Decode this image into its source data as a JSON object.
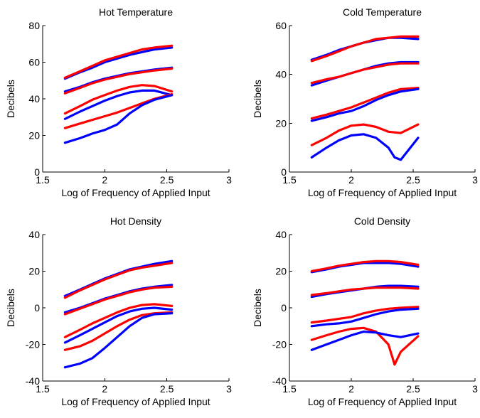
{
  "chart_data": [
    {
      "type": "line",
      "title": "Hot Temperature",
      "xlabel": "Log of Frequency of Applied Input",
      "ylabel": "Decibels",
      "xlim": [
        1.5,
        3
      ],
      "ylim": [
        0,
        80
      ],
      "xticks": [
        "1.5",
        "2",
        "2.5",
        "3"
      ],
      "yticks": [
        "0",
        "20",
        "40",
        "60",
        "80"
      ],
      "colors": {
        "blue": "#0000ff",
        "red": "#ff0000"
      },
      "series": [
        {
          "color": "blue",
          "x": [
            1.68,
            1.8,
            1.9,
            2.0,
            2.1,
            2.2,
            2.3,
            2.4,
            2.54
          ],
          "y": [
            51,
            54.5,
            57,
            60,
            62,
            64,
            65.5,
            67,
            68
          ]
        },
        {
          "color": "red",
          "x": [
            1.68,
            1.8,
            1.9,
            2.0,
            2.1,
            2.2,
            2.3,
            2.4,
            2.54
          ],
          "y": [
            51.5,
            55,
            58,
            61,
            63,
            65,
            67,
            68,
            69
          ]
        },
        {
          "color": "blue",
          "x": [
            1.68,
            1.8,
            1.9,
            2.0,
            2.1,
            2.2,
            2.3,
            2.4,
            2.54
          ],
          "y": [
            44,
            46.5,
            49,
            51,
            52.5,
            54,
            55,
            56,
            57
          ]
        },
        {
          "color": "red",
          "x": [
            1.68,
            1.8,
            1.9,
            2.0,
            2.1,
            2.2,
            2.3,
            2.4,
            2.54
          ],
          "y": [
            43,
            46,
            48.5,
            50.5,
            52,
            53.5,
            54.5,
            55.5,
            56.5
          ]
        },
        {
          "color": "blue",
          "x": [
            1.68,
            1.8,
            1.9,
            2.0,
            2.1,
            2.2,
            2.3,
            2.4,
            2.54
          ],
          "y": [
            29,
            33,
            36,
            39,
            41.5,
            43.5,
            44.5,
            44.5,
            42
          ]
        },
        {
          "color": "red",
          "x": [
            1.68,
            1.8,
            1.9,
            2.0,
            2.1,
            2.2,
            2.3,
            2.4,
            2.54
          ],
          "y": [
            32,
            36,
            39.5,
            42,
            44.5,
            46.5,
            47.5,
            47,
            44
          ]
        },
        {
          "color": "red",
          "x": [
            1.68,
            1.8,
            1.9,
            2.0,
            2.1,
            2.2,
            2.3,
            2.4,
            2.54
          ],
          "y": [
            24,
            26.5,
            28.5,
            30.5,
            32.5,
            35,
            37.5,
            40,
            42.5
          ]
        },
        {
          "color": "blue",
          "x": [
            1.68,
            1.8,
            1.9,
            2.0,
            2.1,
            2.2,
            2.3,
            2.4,
            2.54
          ],
          "y": [
            16,
            18.5,
            21,
            23,
            26,
            32,
            36.5,
            39.5,
            42
          ]
        }
      ]
    },
    {
      "type": "line",
      "title": "Cold Temperature",
      "xlabel": "Log of Frequency of Applied Input",
      "ylabel": "Decibels",
      "xlim": [
        1.5,
        3
      ],
      "ylim": [
        0,
        60
      ],
      "xticks": [
        "1.5",
        "2",
        "2.5",
        "3"
      ],
      "yticks": [
        "0",
        "20",
        "40",
        "60"
      ],
      "colors": {
        "blue": "#0000ff",
        "red": "#ff0000"
      },
      "series": [
        {
          "color": "blue",
          "x": [
            1.68,
            1.8,
            1.9,
            2.0,
            2.1,
            2.2,
            2.3,
            2.4,
            2.54
          ],
          "y": [
            46,
            48,
            50,
            51.5,
            53,
            54,
            55,
            55,
            54.5
          ]
        },
        {
          "color": "red",
          "x": [
            1.68,
            1.8,
            1.9,
            2.0,
            2.1,
            2.2,
            2.3,
            2.4,
            2.54
          ],
          "y": [
            45.5,
            47.5,
            49.5,
            51.5,
            53,
            54.5,
            55,
            55.5,
            55.5
          ]
        },
        {
          "color": "blue",
          "x": [
            1.68,
            1.8,
            1.9,
            2.0,
            2.1,
            2.2,
            2.3,
            2.4,
            2.54
          ],
          "y": [
            35.5,
            37.5,
            39,
            40.5,
            42,
            43.5,
            44.5,
            45,
            45
          ]
        },
        {
          "color": "red",
          "x": [
            1.68,
            1.8,
            1.9,
            2.0,
            2.1,
            2.2,
            2.3,
            2.4,
            2.54
          ],
          "y": [
            36.5,
            38,
            39,
            40.5,
            42,
            43,
            44,
            44.5,
            44.5
          ]
        },
        {
          "color": "red",
          "x": [
            1.68,
            1.8,
            1.9,
            2.0,
            2.1,
            2.2,
            2.3,
            2.4,
            2.54
          ],
          "y": [
            22,
            23.5,
            25,
            26.5,
            28.5,
            30.5,
            32.5,
            34,
            34.5
          ]
        },
        {
          "color": "blue",
          "x": [
            1.68,
            1.8,
            1.9,
            2.0,
            2.1,
            2.2,
            2.3,
            2.4,
            2.54
          ],
          "y": [
            21,
            22.5,
            24,
            25,
            27,
            29.5,
            31.5,
            33,
            34
          ]
        },
        {
          "color": "red",
          "x": [
            1.68,
            1.8,
            1.9,
            2.0,
            2.1,
            2.2,
            2.3,
            2.4,
            2.54
          ],
          "y": [
            11,
            14,
            17,
            19,
            19.5,
            18.5,
            16.5,
            16,
            19.5
          ]
        },
        {
          "color": "blue",
          "x": [
            1.68,
            1.8,
            1.9,
            2.0,
            2.1,
            2.2,
            2.3,
            2.35,
            2.4,
            2.54
          ],
          "y": [
            6,
            10,
            13,
            15,
            15.5,
            14,
            10,
            6,
            5,
            14
          ]
        }
      ]
    },
    {
      "type": "line",
      "title": "Hot Density",
      "xlabel": "Log of Frequency of Applied Input",
      "ylabel": "Decibels",
      "xlim": [
        1.5,
        3
      ],
      "ylim": [
        -40,
        40
      ],
      "xticks": [
        "1.5",
        "2",
        "2.5",
        "3"
      ],
      "yticks": [
        "-40",
        "-20",
        "0",
        "20",
        "40"
      ],
      "colors": {
        "blue": "#0000ff",
        "red": "#ff0000"
      },
      "series": [
        {
          "color": "blue",
          "x": [
            1.68,
            1.8,
            1.9,
            2.0,
            2.1,
            2.2,
            2.3,
            2.4,
            2.54
          ],
          "y": [
            6.5,
            10,
            13,
            16,
            18.5,
            21,
            22.5,
            24,
            25.5
          ]
        },
        {
          "color": "red",
          "x": [
            1.68,
            1.8,
            1.9,
            2.0,
            2.1,
            2.2,
            2.3,
            2.4,
            2.54
          ],
          "y": [
            5.5,
            9.5,
            12.5,
            15.5,
            18,
            20.5,
            22,
            23,
            24.5
          ]
        },
        {
          "color": "blue",
          "x": [
            1.68,
            1.8,
            1.9,
            2.0,
            2.1,
            2.2,
            2.3,
            2.4,
            2.54
          ],
          "y": [
            -2.5,
            0,
            2.5,
            5,
            7,
            9,
            10.5,
            11.5,
            12.5
          ]
        },
        {
          "color": "red",
          "x": [
            1.68,
            1.8,
            1.9,
            2.0,
            2.1,
            2.2,
            2.3,
            2.4,
            2.54
          ],
          "y": [
            -3.5,
            -0.5,
            2,
            4.5,
            6.5,
            8.5,
            10,
            11,
            11.5
          ]
        },
        {
          "color": "red",
          "x": [
            1.68,
            1.8,
            1.9,
            2.0,
            2.1,
            2.2,
            2.3,
            2.4,
            2.54
          ],
          "y": [
            -16,
            -12,
            -8.5,
            -5.5,
            -2.5,
            0,
            1.5,
            2,
            1
          ]
        },
        {
          "color": "blue",
          "x": [
            1.68,
            1.8,
            1.9,
            2.0,
            2.1,
            2.2,
            2.3,
            2.4,
            2.54
          ],
          "y": [
            -19,
            -15,
            -11.5,
            -8,
            -4.5,
            -2,
            -0.5,
            0,
            -1
          ]
        },
        {
          "color": "red",
          "x": [
            1.68,
            1.8,
            1.9,
            2.0,
            2.1,
            2.2,
            2.3,
            2.4,
            2.54
          ],
          "y": [
            -23,
            -21,
            -18,
            -14,
            -10,
            -6.5,
            -4,
            -3,
            -2.5
          ]
        },
        {
          "color": "blue",
          "x": [
            1.68,
            1.8,
            1.9,
            2.0,
            2.1,
            2.2,
            2.3,
            2.4,
            2.54
          ],
          "y": [
            -32.5,
            -30.5,
            -27.5,
            -22,
            -16,
            -10,
            -5.5,
            -3.5,
            -3
          ]
        }
      ]
    },
    {
      "type": "line",
      "title": "Cold Density",
      "xlabel": "Log of Frequency of Applied Input",
      "ylabel": "Decibels",
      "xlim": [
        1.5,
        3
      ],
      "ylim": [
        -40,
        40
      ],
      "xticks": [
        "1.5",
        "2",
        "2.5",
        "3"
      ],
      "yticks": [
        "-40",
        "-20",
        "0",
        "20",
        "40"
      ],
      "colors": {
        "blue": "#0000ff",
        "red": "#ff0000"
      },
      "series": [
        {
          "color": "blue",
          "x": [
            1.68,
            1.8,
            1.9,
            2.0,
            2.1,
            2.2,
            2.3,
            2.4,
            2.54
          ],
          "y": [
            19.5,
            21,
            22.5,
            23.5,
            24.5,
            24.5,
            24.5,
            24,
            22.5
          ]
        },
        {
          "color": "red",
          "x": [
            1.68,
            1.8,
            1.9,
            2.0,
            2.1,
            2.2,
            2.3,
            2.4,
            2.54
          ],
          "y": [
            20,
            21.5,
            23,
            24,
            25,
            25.5,
            25.5,
            25,
            23.5
          ]
        },
        {
          "color": "blue",
          "x": [
            1.68,
            1.8,
            1.9,
            2.0,
            2.1,
            2.2,
            2.3,
            2.4,
            2.54
          ],
          "y": [
            6,
            7.5,
            8.5,
            9.5,
            10.5,
            11.5,
            12,
            12,
            11.5
          ]
        },
        {
          "color": "red",
          "x": [
            1.68,
            1.8,
            1.9,
            2.0,
            2.1,
            2.2,
            2.3,
            2.4,
            2.54
          ],
          "y": [
            7,
            8,
            9,
            10,
            10.5,
            11,
            11,
            11,
            10.5
          ]
        },
        {
          "color": "red",
          "x": [
            1.68,
            1.8,
            1.9,
            2.0,
            2.1,
            2.2,
            2.3,
            2.4,
            2.54
          ],
          "y": [
            -8,
            -7,
            -6,
            -5,
            -3,
            -1.5,
            -0.5,
            0,
            0.5
          ]
        },
        {
          "color": "blue",
          "x": [
            1.68,
            1.8,
            1.9,
            2.0,
            2.1,
            2.2,
            2.3,
            2.4,
            2.54
          ],
          "y": [
            -10,
            -9,
            -8.5,
            -7.5,
            -5.5,
            -3.5,
            -2,
            -1,
            -0.5
          ]
        },
        {
          "color": "red",
          "x": [
            1.68,
            1.8,
            1.9,
            2.0,
            2.1,
            2.2,
            2.3,
            2.35,
            2.4,
            2.54
          ],
          "y": [
            -17.5,
            -15,
            -13,
            -11.5,
            -11,
            -13,
            -20,
            -31,
            -24,
            -15.5
          ]
        },
        {
          "color": "blue",
          "x": [
            1.68,
            1.8,
            1.9,
            2.0,
            2.1,
            2.2,
            2.3,
            2.4,
            2.54
          ],
          "y": [
            -23,
            -20,
            -17.5,
            -15,
            -13,
            -13.5,
            -15,
            -16,
            -14
          ]
        }
      ]
    }
  ]
}
